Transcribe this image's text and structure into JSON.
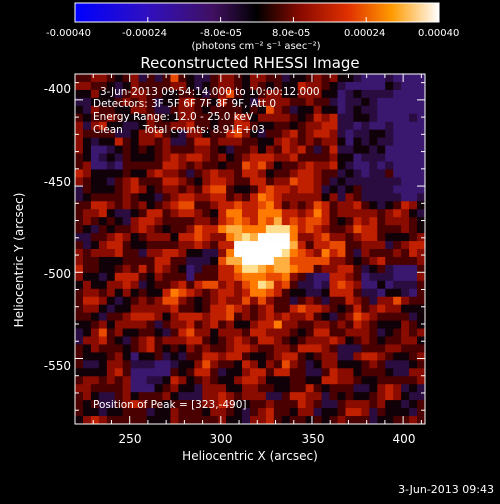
{
  "colorbar": {
    "tick_labels": [
      "-0.00040",
      "-0.00024",
      "-8.0e-05",
      "8.0e-05",
      "0.00024",
      "0.00040"
    ],
    "unit_label": "(photons cm⁻² s⁻¹ asec⁻²)",
    "range": [
      -0.0004,
      0.0004
    ]
  },
  "title": "Reconstructed RHESSI Image",
  "info": {
    "time": "3-Jun-2013 09:54:14.000 to 10:00:12.000",
    "detectors": "Detectors: 3F 5F 6F 7F 8F 9F, Att 0",
    "energy": "Energy Range: 12.0 - 25.0 keV",
    "clean": "Clean      Total counts: 8.91E+03",
    "peak": "Position of Peak = [323,-490]"
  },
  "axes": {
    "xlabel": "Heliocentric X (arcsec)",
    "ylabel": "Heliocentric Y (arcsec)",
    "xticks": [
      "250",
      "300",
      "350",
      "400"
    ],
    "yticks": [
      "-400",
      "-450",
      "-500",
      "-550"
    ],
    "xlim": [
      220,
      412
    ],
    "ylim": [
      -588,
      -385
    ]
  },
  "footer_date": "3-Jun-2013 09:43",
  "colors": {
    "background": "#000000",
    "text": "#ffffff"
  }
}
